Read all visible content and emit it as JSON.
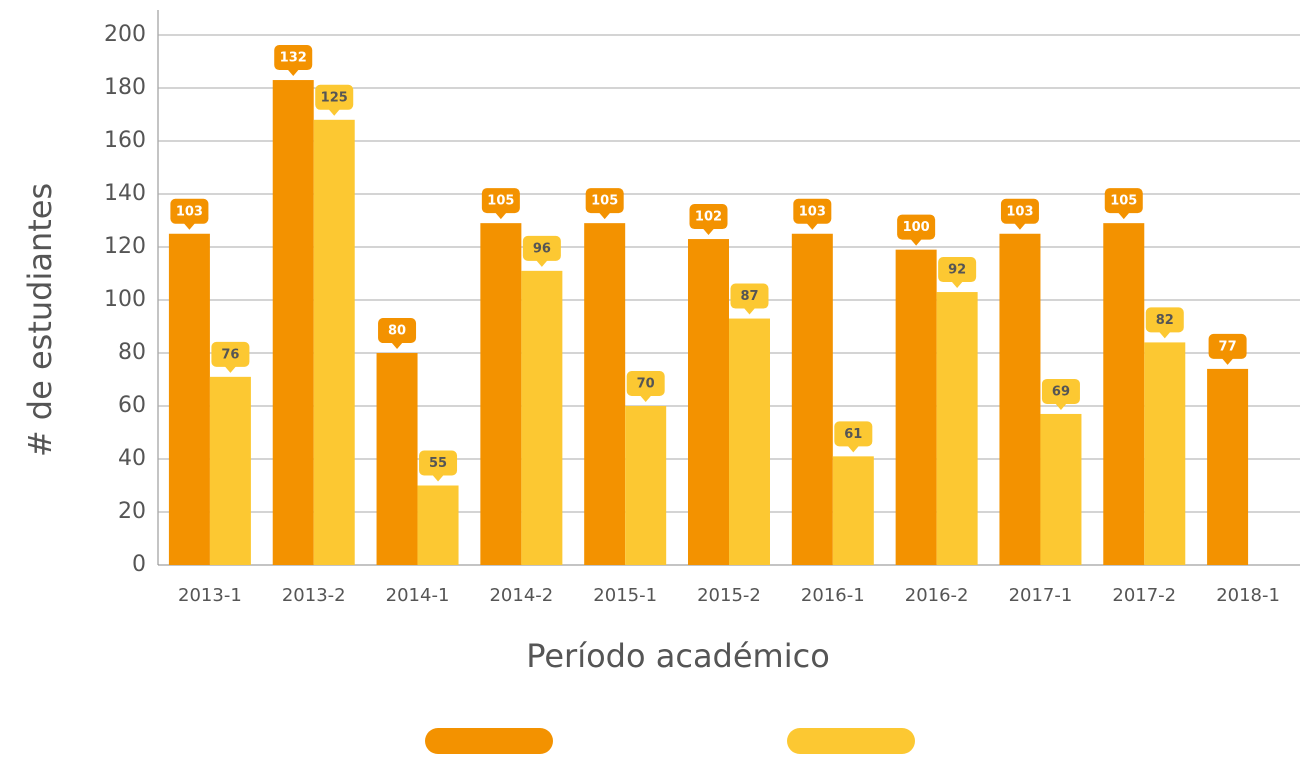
{
  "chart_data": {
    "type": "bar",
    "x_label": "Período académico",
    "y_label": "# de estudiantes",
    "categories": [
      "2013-1",
      "2013-2",
      "2014-1",
      "2014-2",
      "2015-1",
      "2015-2",
      "2016-1",
      "2016-2",
      "2017-1",
      "2017-2",
      "2018-1"
    ],
    "series": [
      {
        "color": "#f39200",
        "values": [
          125,
          183,
          80,
          129,
          129,
          123,
          125,
          119,
          125,
          129,
          74
        ],
        "bubble_values": [
          103,
          132,
          80,
          105,
          105,
          102,
          103,
          100,
          103,
          105,
          77
        ]
      },
      {
        "color": "#fcc832",
        "values": [
          71,
          168,
          30,
          111,
          60,
          93,
          41,
          103,
          57,
          84,
          null
        ],
        "bubble_values": [
          76,
          125,
          55,
          96,
          70,
          87,
          61,
          92,
          69,
          82,
          null
        ]
      }
    ],
    "ylim": [
      0,
      200
    ],
    "yticks": [
      0,
      20,
      40,
      60,
      80,
      100,
      120,
      140,
      160,
      180,
      200
    ],
    "grid": true
  }
}
